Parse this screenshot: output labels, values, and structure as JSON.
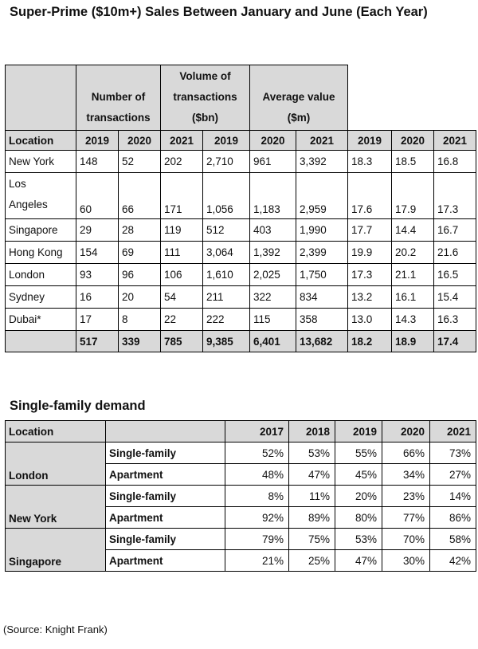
{
  "title": "Super-Prime ($10m+) Sales Between January and June (Each Year)",
  "sales_table": {
    "group_headers": {
      "transactions": [
        "Number of",
        "transactions"
      ],
      "volume": [
        "Volume of",
        "transactions",
        "($bn)"
      ],
      "average": [
        "Average value",
        "($m)"
      ]
    },
    "column_headers": [
      "Location",
      "2019",
      "2020",
      "2021",
      "2019",
      "2020",
      "2021",
      "2019",
      "2020",
      "2021"
    ],
    "rows": [
      {
        "location": "New York",
        "values": [
          "148",
          "52",
          "202",
          "2,710",
          "961",
          "3,392",
          "18.3",
          "18.5",
          "16.8"
        ]
      },
      {
        "location_line1": "Los",
        "location_line2": "Angeles",
        "values": [
          "60",
          "66",
          "171",
          "1,056",
          "1,183",
          "2,959",
          "17.6",
          "17.9",
          "17.3"
        ]
      },
      {
        "location": "Singapore",
        "values": [
          "29",
          "28",
          "119",
          "512",
          "403",
          "1,990",
          "17.7",
          "14.4",
          "16.7"
        ]
      },
      {
        "location": "Hong Kong",
        "values": [
          "154",
          "69",
          "111",
          "3,064",
          "1,392",
          "2,399",
          "19.9",
          "20.2",
          "21.6"
        ]
      },
      {
        "location": "London",
        "values": [
          "93",
          "96",
          "106",
          "1,610",
          "2,025",
          "1,750",
          "17.3",
          "21.1",
          "16.5"
        ]
      },
      {
        "location": "Sydney",
        "values": [
          "16",
          "20",
          "54",
          "211",
          "322",
          "834",
          "13.2",
          "16.1",
          "15.4"
        ]
      },
      {
        "location": "Dubai*",
        "values": [
          "17",
          "8",
          "22",
          "222",
          "115",
          "358",
          "13.0",
          "14.3",
          "16.3"
        ]
      }
    ],
    "totals": [
      "517",
      "339",
      "785",
      "9,385",
      "6,401",
      "13,682",
      "18.2",
      "18.9",
      "17.4"
    ]
  },
  "subtitle": "Single-family demand",
  "demand_table": {
    "headers": [
      "Location",
      "",
      "2017",
      "2018",
      "2019",
      "2020",
      "2021"
    ],
    "groups": [
      {
        "city": "London",
        "rows": [
          {
            "type": "Single-family",
            "values": [
              "52%",
              "53%",
              "55%",
              "66%",
              "73%"
            ]
          },
          {
            "type": "Apartment",
            "values": [
              "48%",
              "47%",
              "45%",
              "34%",
              "27%"
            ]
          }
        ]
      },
      {
        "city": "New York",
        "rows": [
          {
            "type": "Single-family",
            "values": [
              "8%",
              "11%",
              "20%",
              "23%",
              "14%"
            ]
          },
          {
            "type": "Apartment",
            "values": [
              "92%",
              "89%",
              "80%",
              "77%",
              "86%"
            ]
          }
        ]
      },
      {
        "city": "Singapore",
        "rows": [
          {
            "type": "Single-family",
            "values": [
              "79%",
              "75%",
              "53%",
              "70%",
              "58%"
            ]
          },
          {
            "type": "Apartment",
            "values": [
              "21%",
              "25%",
              "47%",
              "30%",
              "42%"
            ]
          }
        ]
      }
    ]
  },
  "source": "(Source: Knight Frank)"
}
